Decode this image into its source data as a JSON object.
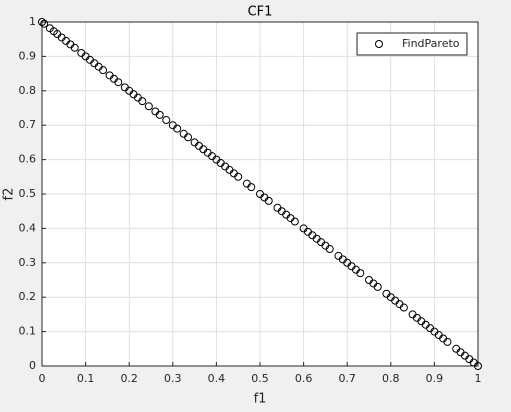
{
  "chart_data": {
    "type": "scatter",
    "title": "CF1",
    "x_label": "f1",
    "y_label": "f2",
    "xlim": [
      0,
      1
    ],
    "ylim": [
      0,
      1
    ],
    "xticks": [
      0,
      0.1,
      0.2,
      0.3,
      0.4,
      0.5,
      0.6,
      0.7,
      0.8,
      0.9,
      1
    ],
    "yticks": [
      0,
      0.1,
      0.2,
      0.3,
      0.4,
      0.5,
      0.6,
      0.7,
      0.8,
      0.9,
      1
    ],
    "grid": true,
    "legend_position": "northeast",
    "series": [
      {
        "name": "FindPareto",
        "color": "#000000",
        "x": [
          0,
          0.005,
          0.018,
          0.027,
          0.035,
          0.045,
          0.055,
          0.065,
          0.075,
          0.09,
          0.1,
          0.11,
          0.12,
          0.13,
          0.14,
          0.155,
          0.165,
          0.175,
          0.19,
          0.2,
          0.21,
          0.22,
          0.23,
          0.245,
          0.26,
          0.27,
          0.285,
          0.3,
          0.31,
          0.325,
          0.335,
          0.35,
          0.36,
          0.37,
          0.38,
          0.39,
          0.4,
          0.41,
          0.42,
          0.43,
          0.44,
          0.45,
          0.47,
          0.48,
          0.5,
          0.51,
          0.52,
          0.54,
          0.55,
          0.56,
          0.57,
          0.58,
          0.6,
          0.61,
          0.62,
          0.63,
          0.64,
          0.65,
          0.66,
          0.68,
          0.69,
          0.7,
          0.71,
          0.72,
          0.73,
          0.75,
          0.76,
          0.77,
          0.79,
          0.8,
          0.81,
          0.82,
          0.83,
          0.85,
          0.86,
          0.87,
          0.88,
          0.89,
          0.9,
          0.91,
          0.92,
          0.93,
          0.95,
          0.96,
          0.97,
          0.98,
          0.99,
          1
        ],
        "values": [
          1,
          0.995,
          0.982,
          0.973,
          0.965,
          0.955,
          0.945,
          0.935,
          0.925,
          0.91,
          0.9,
          0.89,
          0.88,
          0.87,
          0.86,
          0.845,
          0.835,
          0.825,
          0.81,
          0.8,
          0.79,
          0.78,
          0.77,
          0.755,
          0.74,
          0.73,
          0.715,
          0.7,
          0.69,
          0.675,
          0.665,
          0.65,
          0.64,
          0.63,
          0.62,
          0.61,
          0.6,
          0.59,
          0.58,
          0.57,
          0.56,
          0.55,
          0.53,
          0.52,
          0.5,
          0.49,
          0.48,
          0.46,
          0.45,
          0.44,
          0.43,
          0.42,
          0.4,
          0.39,
          0.38,
          0.37,
          0.36,
          0.35,
          0.34,
          0.32,
          0.31,
          0.3,
          0.29,
          0.28,
          0.27,
          0.25,
          0.24,
          0.23,
          0.21,
          0.2,
          0.19,
          0.18,
          0.17,
          0.15,
          0.14,
          0.13,
          0.12,
          0.11,
          0.1,
          0.09,
          0.08,
          0.07,
          0.05,
          0.04,
          0.03,
          0.02,
          0.01,
          0
        ]
      }
    ]
  }
}
